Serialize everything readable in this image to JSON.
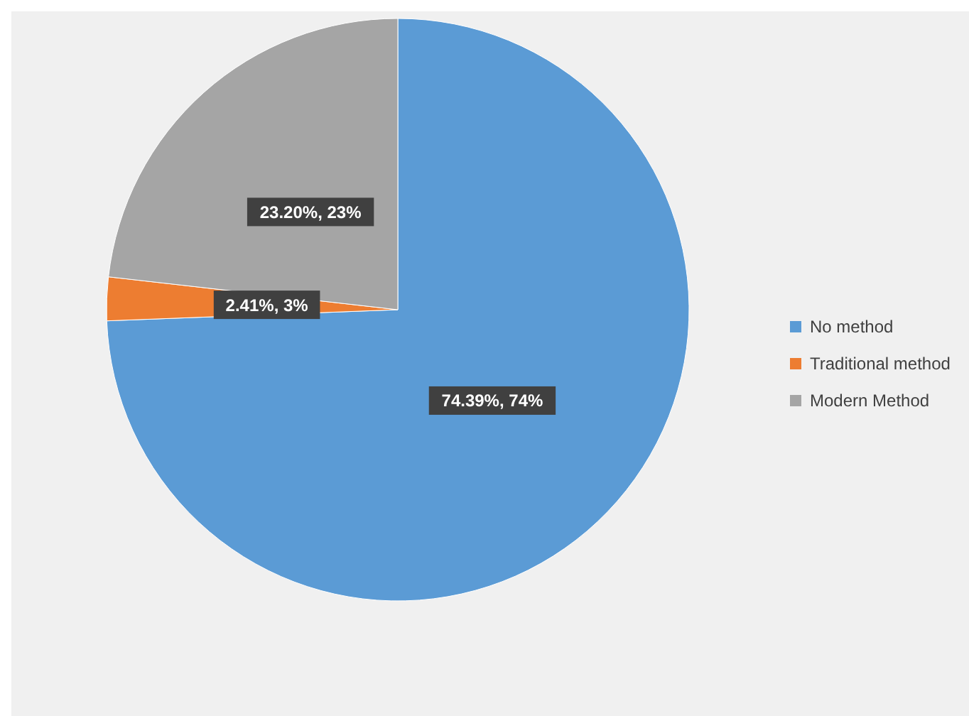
{
  "chart_data": {
    "type": "pie",
    "categories": [
      "No method",
      "Traditional method",
      "Modern Method"
    ],
    "values": [
      74.39,
      2.41,
      23.2
    ],
    "colors": [
      "#5b9bd5",
      "#ed7d31",
      "#a5a5a5"
    ],
    "value_labels": [
      "74.39%, 74%",
      "2.41%, 3%",
      "23.20%, 23%"
    ],
    "legend": "right"
  }
}
